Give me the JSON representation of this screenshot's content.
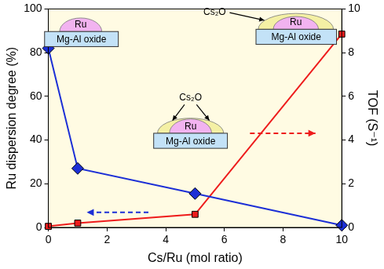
{
  "chart_data": {
    "type": "line",
    "x_label": "Cs/Ru (mol ratio)",
    "y_label": "Ru dispersion degree (%)",
    "y2_label": "TOF (S⁻¹)",
    "x": [
      0,
      1,
      5,
      10
    ],
    "xlim": [
      0,
      10
    ],
    "xticks": [
      0,
      2,
      4,
      6,
      8,
      10
    ],
    "ylim": [
      0,
      100
    ],
    "yticks": [
      0,
      20,
      40,
      60,
      80,
      100
    ],
    "y2lim": [
      0,
      10
    ],
    "y2ticks": [
      0,
      2,
      4,
      6,
      8,
      10
    ],
    "grid": false,
    "series": [
      {
        "color": "#1c2fd6",
        "marker": "diamond",
        "values": [
          82,
          27,
          15.5,
          1
        ]
      },
      {
        "color": "#ee1c1c",
        "marker": "square",
        "axis": "y2",
        "values": [
          0.05,
          0.2,
          0.6,
          8.85
        ]
      }
    ],
    "annotations": [
      {
        "particle": "Ru",
        "support": "Mg-Al oxide"
      },
      {
        "particle": "Ru",
        "promoter": "Cs₂O",
        "support": "Mg-Al oxide"
      },
      {
        "particle": "Ru",
        "promoter": "Cs₂O",
        "support": "Mg-Al oxide"
      }
    ]
  }
}
